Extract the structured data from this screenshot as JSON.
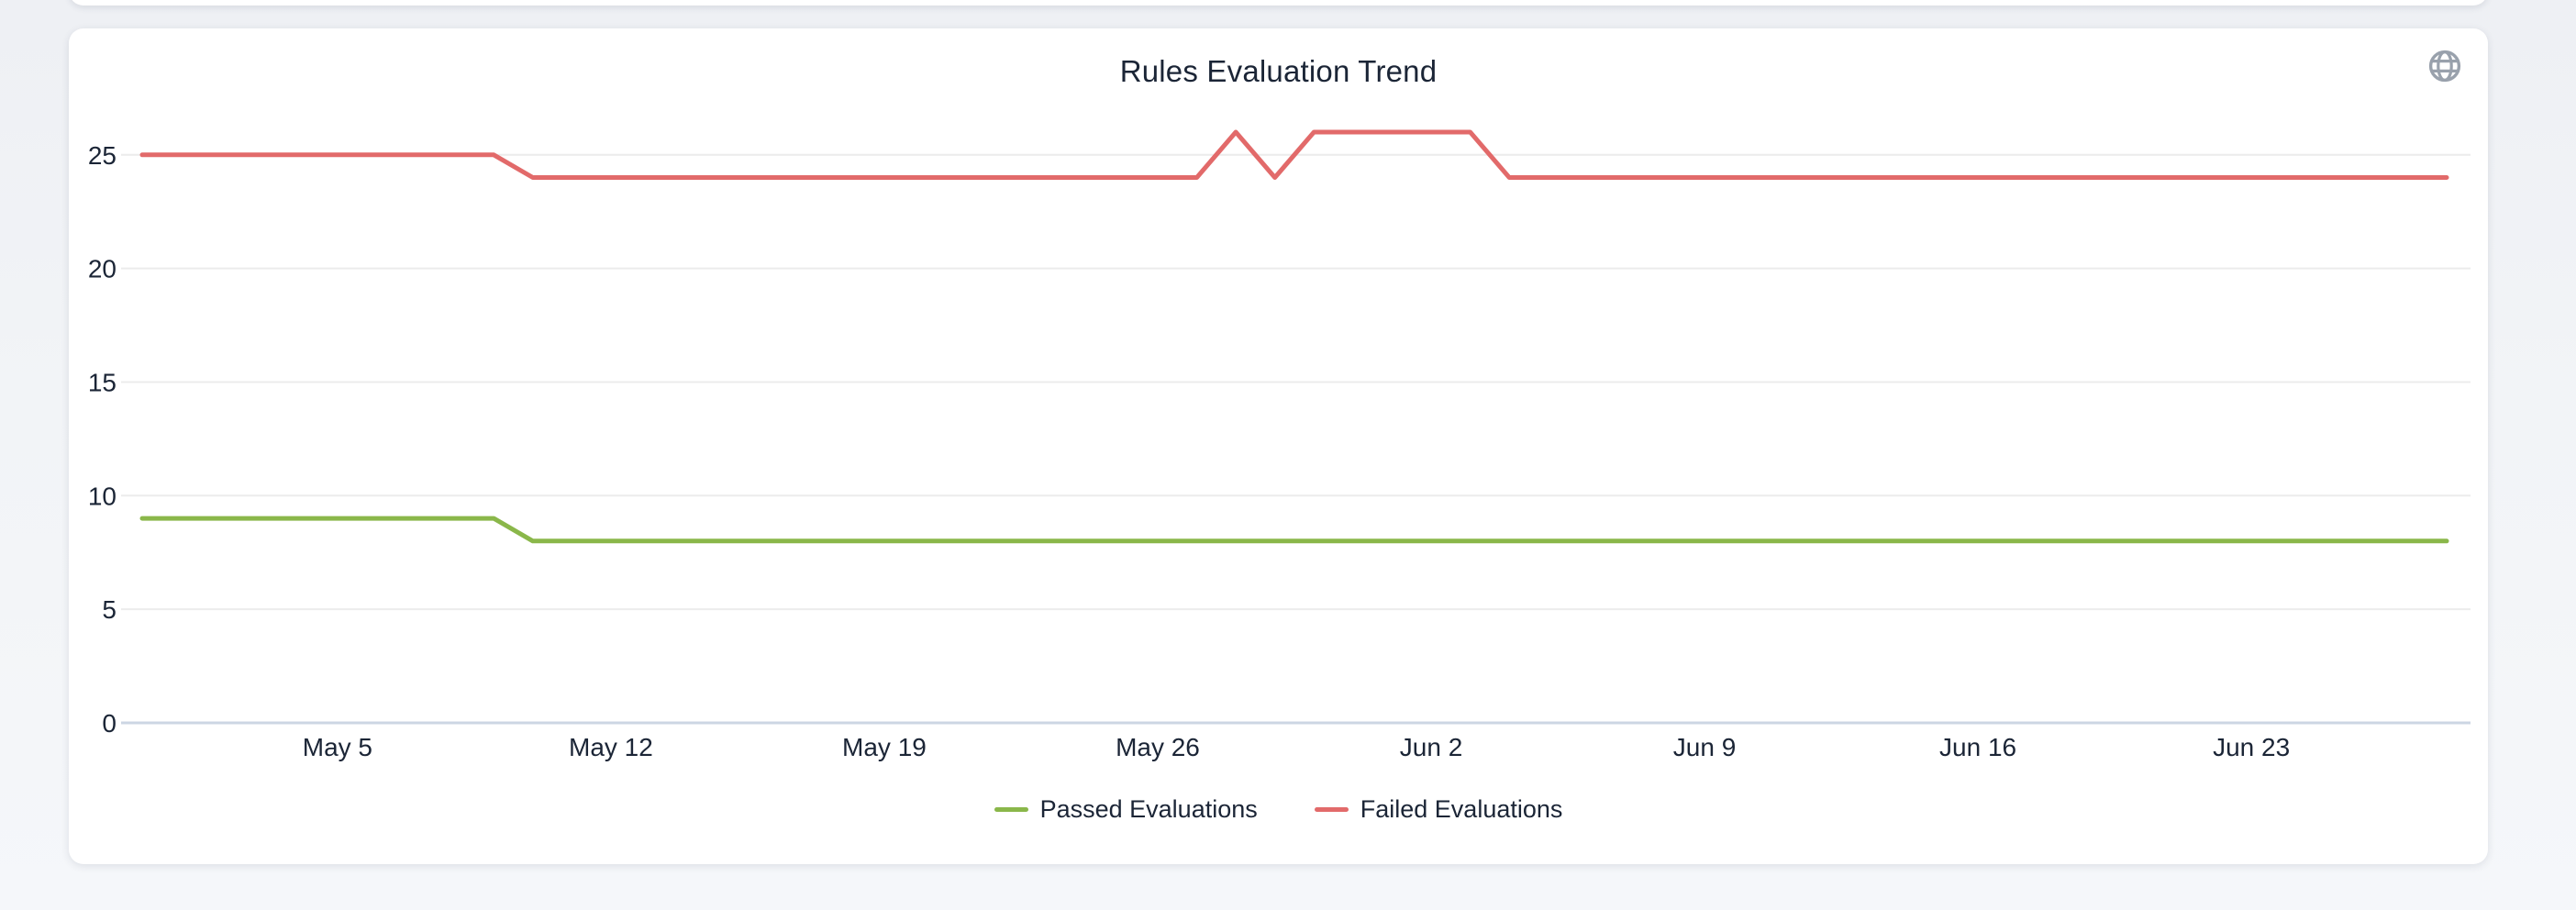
{
  "page": {
    "background": "#f2f4f7"
  },
  "card": {
    "title": "Rules Evaluation Trend"
  },
  "chart_data": {
    "type": "line",
    "title": "Rules Evaluation Trend",
    "xlabel": "",
    "ylabel": "",
    "x_start_date": "Apr 30",
    "x_end_date": "Jun 28",
    "x_tick_labels": [
      "May 5",
      "May 12",
      "May 19",
      "May 26",
      "Jun 2",
      "Jun 9",
      "Jun 16",
      "Jun 23"
    ],
    "x_ticks": [
      {
        "label": "May 5",
        "index": 5
      },
      {
        "label": "May 12",
        "index": 12
      },
      {
        "label": "May 19",
        "index": 19
      },
      {
        "label": "May 26",
        "index": 26
      },
      {
        "label": "Jun 2",
        "index": 33
      },
      {
        "label": "Jun 9",
        "index": 40
      },
      {
        "label": "Jun 16",
        "index": 47
      },
      {
        "label": "Jun 23",
        "index": 54
      }
    ],
    "y_ticks": [
      0,
      5,
      10,
      15,
      20,
      25
    ],
    "ylim": [
      0,
      26.9
    ],
    "grid": "horizontal",
    "legend_position": "bottom-center",
    "colors": {
      "passed": "#8ab74a",
      "failed": "#e26a6a",
      "gridline": "#ececec",
      "zero_axis": "#ccd6e3",
      "text": "#1b2536"
    },
    "series": [
      {
        "name": "Passed Evaluations",
        "color": "#8ab74a",
        "values": [
          9,
          9,
          9,
          9,
          9,
          9,
          9,
          9,
          9,
          9,
          8,
          8,
          8,
          8,
          8,
          8,
          8,
          8,
          8,
          8,
          8,
          8,
          8,
          8,
          8,
          8,
          8,
          8,
          8,
          8,
          8,
          8,
          8,
          8,
          8,
          8,
          8,
          8,
          8,
          8,
          8,
          8,
          8,
          8,
          8,
          8,
          8,
          8,
          8,
          8,
          8,
          8,
          8,
          8,
          8,
          8,
          8,
          8,
          8,
          8
        ]
      },
      {
        "name": "Failed Evaluations",
        "color": "#e26a6a",
        "values": [
          25,
          25,
          25,
          25,
          25,
          25,
          25,
          25,
          25,
          25,
          24,
          24,
          24,
          24,
          24,
          24,
          24,
          24,
          24,
          24,
          24,
          24,
          24,
          24,
          24,
          24,
          24,
          24,
          26,
          24,
          26,
          26,
          26,
          26,
          26,
          24,
          24,
          24,
          24,
          24,
          24,
          24,
          24,
          24,
          24,
          24,
          24,
          24,
          24,
          24,
          24,
          24,
          24,
          24,
          24,
          24,
          24,
          24,
          24,
          24
        ]
      }
    ]
  }
}
